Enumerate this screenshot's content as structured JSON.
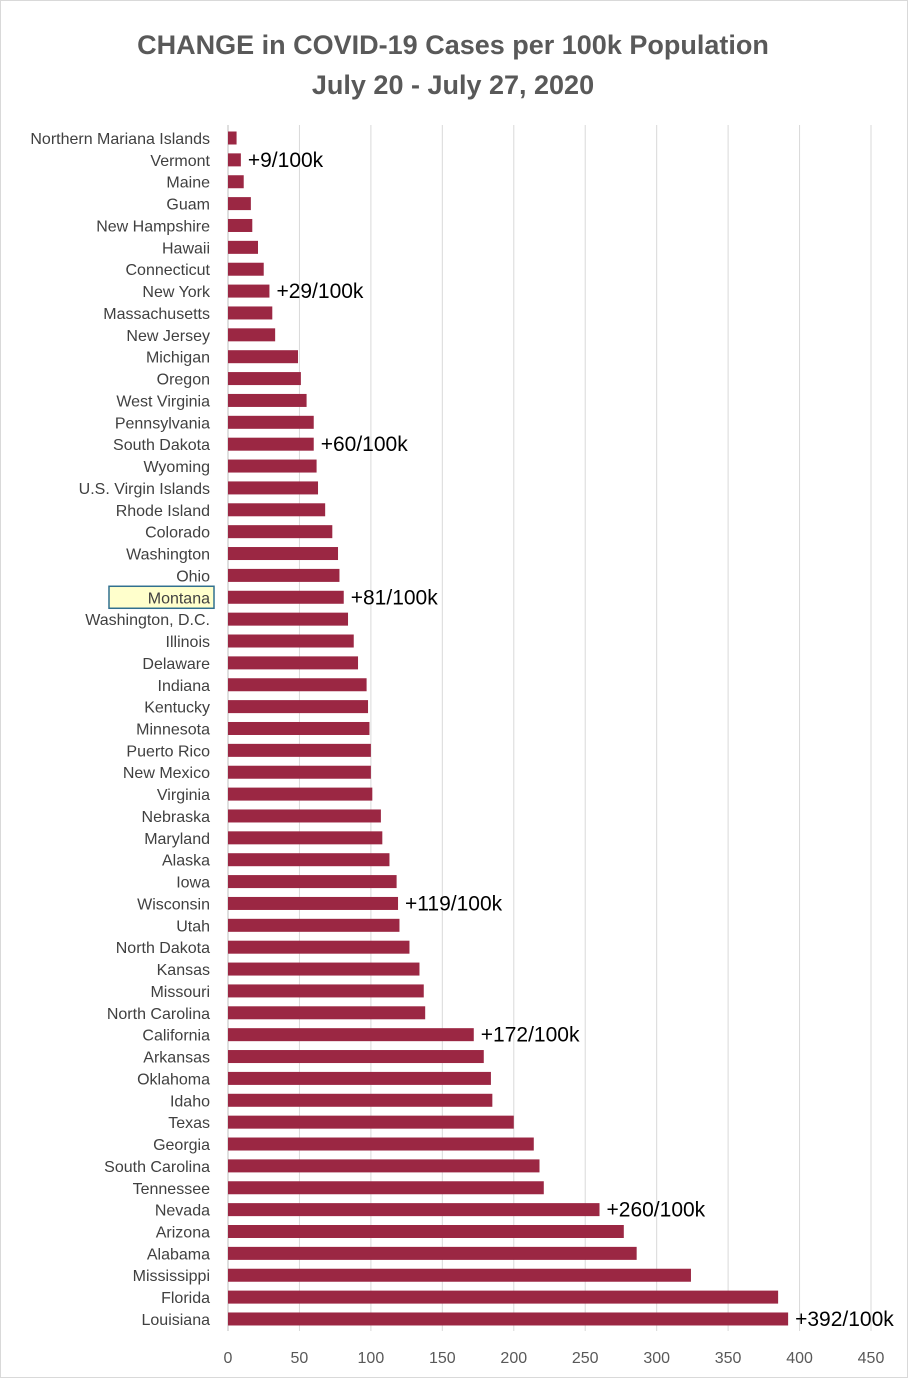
{
  "chart_data": {
    "type": "bar",
    "orientation": "horizontal",
    "title": "CHANGE in COVID-19 Cases per 100k Population",
    "subtitle": "July 20 - July 27, 2020",
    "xlim": [
      0,
      450
    ],
    "x_ticks": [
      0,
      50,
      100,
      150,
      200,
      250,
      300,
      350,
      400,
      450
    ],
    "grid": "vertical",
    "legend": "none",
    "bar_color": "#9b2743",
    "highlight_color": "#ffffcc",
    "highlight_border_color": "#31708f",
    "highlight_text_color": "#7f7f00",
    "highlighted_category": "Montana",
    "categories": [
      "Northern Mariana Islands",
      "Vermont",
      "Maine",
      "Guam",
      "New Hampshire",
      "Hawaii",
      "Connecticut",
      "New York",
      "Massachusetts",
      "New Jersey",
      "Michigan",
      "Oregon",
      "West Virginia",
      "Pennsylvania",
      "South Dakota",
      "Wyoming",
      "U.S. Virgin Islands",
      "Rhode Island",
      "Colorado",
      "Washington",
      "Ohio",
      "Montana",
      "Washington, D.C.",
      "Illinois",
      "Delaware",
      "Indiana",
      "Kentucky",
      "Minnesota",
      "Puerto Rico",
      "New Mexico",
      "Virginia",
      "Nebraska",
      "Maryland",
      "Alaska",
      "Iowa",
      "Wisconsin",
      "Utah",
      "North Dakota",
      "Kansas",
      "Missouri",
      "North Carolina",
      "California",
      "Arkansas",
      "Oklahoma",
      "Idaho",
      "Texas",
      "Georgia",
      "South Carolina",
      "Tennessee",
      "Nevada",
      "Arizona",
      "Alabama",
      "Mississippi",
      "Florida",
      "Louisiana"
    ],
    "values": [
      6,
      9,
      11,
      16,
      17,
      21,
      25,
      29,
      31,
      33,
      49,
      51,
      55,
      60,
      60,
      62,
      63,
      68,
      73,
      77,
      78,
      81,
      84,
      88,
      91,
      97,
      98,
      99,
      100,
      100,
      101,
      107,
      108,
      113,
      118,
      119,
      120,
      127,
      134,
      137,
      138,
      172,
      179,
      184,
      185,
      200,
      214,
      218,
      221,
      260,
      277,
      286,
      324,
      385,
      392
    ],
    "annotations": [
      {
        "category": "Vermont",
        "text": "+9/100k"
      },
      {
        "category": "New York",
        "text": "+29/100k"
      },
      {
        "category": "South Dakota",
        "text": "+60/100k"
      },
      {
        "category": "Montana",
        "text": "+81/100k"
      },
      {
        "category": "Wisconsin",
        "text": "+119/100k"
      },
      {
        "category": "California",
        "text": "+172/100k"
      },
      {
        "category": "Nevada",
        "text": "+260/100k"
      },
      {
        "category": "Louisiana",
        "text": "+392/100k"
      }
    ]
  }
}
